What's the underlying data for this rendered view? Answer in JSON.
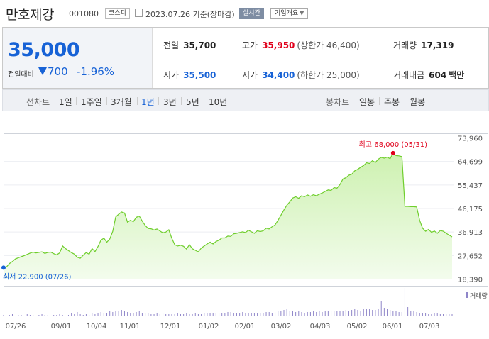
{
  "header": {
    "company": "만호제강",
    "code": "001080",
    "market": "코스피",
    "date": "2023.07.26 기준(장마감)",
    "realtime_label": "실시간",
    "overview_label": "기업개요"
  },
  "quote": {
    "price": "35,000",
    "change_label": "전일대비",
    "change_value": "700",
    "change_pct": "-1.96%",
    "prev_label": "전일",
    "prev": "35,700",
    "high_label": "고가",
    "high": "35,950",
    "upper_limit": "(상한가 46,400)",
    "volume_label": "거래량",
    "volume": "17,319",
    "open_label": "시가",
    "open": "35,500",
    "low_label": "저가",
    "low": "34,400",
    "lower_limit": "(하한가 25,000)",
    "amount_label": "거래대금",
    "amount": "604",
    "amount_unit": "백만"
  },
  "tabs": {
    "line_label": "선차트",
    "line": [
      "1일",
      "1주일",
      "3개월",
      "1년",
      "3년",
      "5년",
      "10년"
    ],
    "line_selected": "1년",
    "candle_label": "봉차트",
    "candle": [
      "일봉",
      "주봉",
      "월봉"
    ]
  },
  "colors": {
    "up": "#e0001b",
    "down": "#1762d6",
    "line": "#6fce2c",
    "fill": "#dff7cc"
  },
  "chart_data": {
    "type": "area",
    "y_ticks": [
      "73,960",
      "64,699",
      "55,437",
      "46,175",
      "36,913",
      "27,652",
      "18,390"
    ],
    "ylim": [
      18390,
      73960
    ],
    "x_ticks": [
      "07/26",
      "09/01",
      "10/04",
      "11/01",
      "12/01",
      "01/02",
      "02/01",
      "03/02",
      "04/03",
      "05/02",
      "06/01",
      "07/03"
    ],
    "max_label": "최고 68,000 (05/31)",
    "min_label": "최저 22,900 (07/26)",
    "volume_label": "거래량",
    "series": [
      {
        "values": [
          22900,
          23200,
          24500,
          25300,
          26300,
          26800,
          27200,
          27600,
          28100,
          28600,
          29000,
          28700,
          28900,
          29100,
          28500,
          28900,
          29000,
          28400,
          27900,
          28700,
          31400,
          30400,
          29600,
          28800,
          28200,
          27000,
          26600,
          27800,
          28800,
          28200,
          30400,
          29200,
          31200,
          33700,
          34500,
          32900,
          34200,
          37100,
          42800,
          43900,
          44800,
          44400,
          40800,
          41500,
          41000,
          42700,
          43200,
          41200,
          39500,
          38300,
          38200,
          37700,
          38100,
          37300,
          36600,
          36900,
          37800,
          34500,
          31900,
          31400,
          31700,
          31300,
          30200,
          31900,
          30300,
          29700,
          29100,
          30600,
          31400,
          32200,
          32900,
          32200,
          33200,
          33700,
          34600,
          34600,
          35300,
          35200,
          36200,
          36400,
          36700,
          37000,
          36700,
          37600,
          37000,
          36400,
          37400,
          37100,
          37400,
          38400,
          38100,
          39000,
          39700,
          41500,
          43500,
          45600,
          47500,
          48800,
          50300,
          50800,
          50200,
          51200,
          50800,
          51500,
          51000,
          51600,
          51200,
          51800,
          52300,
          52900,
          53500,
          53300,
          54400,
          54200,
          55600,
          57800,
          58300,
          59300,
          59700,
          61000,
          61600,
          62400,
          63100,
          64200,
          63900,
          65000,
          64300,
          65600,
          66300,
          66000,
          66400,
          65800,
          68000,
          67000,
          66900,
          66600,
          47000,
          47000,
          46900,
          46900,
          46800,
          41500,
          38400,
          37200,
          37900,
          36800,
          37300,
          36400,
          37500,
          37200,
          36400,
          35700,
          35000
        ]
      }
    ],
    "volume_values": [
      2,
      1,
      2,
      3,
      1,
      2,
      2,
      1,
      3,
      2,
      2,
      1,
      2,
      3,
      2,
      2,
      1,
      2,
      2,
      3,
      2,
      1,
      2,
      4,
      3,
      6,
      3,
      2,
      3,
      2,
      4,
      3,
      5,
      6,
      5,
      4,
      8,
      6,
      7,
      8,
      9,
      8,
      6,
      5,
      5,
      6,
      7,
      5,
      4,
      4,
      3,
      3,
      4,
      3,
      4,
      3,
      3,
      3,
      3,
      4,
      3,
      3,
      4,
      3,
      3,
      4,
      3,
      3,
      4,
      5,
      4,
      4,
      5,
      4,
      4,
      5,
      6,
      6,
      5,
      4,
      5,
      6,
      5,
      5,
      4,
      5,
      4,
      4,
      5,
      6,
      6,
      5,
      6,
      7,
      8,
      9,
      10,
      8,
      7,
      6,
      7,
      6,
      5,
      6,
      6,
      7,
      6,
      7,
      6,
      7,
      8,
      7,
      8,
      7,
      7,
      8,
      9,
      8,
      9,
      10,
      9,
      8,
      10,
      11,
      10,
      9,
      9,
      11,
      22,
      12,
      10,
      9,
      8,
      7,
      6,
      6,
      40,
      13,
      8,
      7,
      6,
      5,
      4,
      4,
      3,
      3,
      4,
      4,
      3,
      3,
      3,
      3,
      3
    ]
  }
}
